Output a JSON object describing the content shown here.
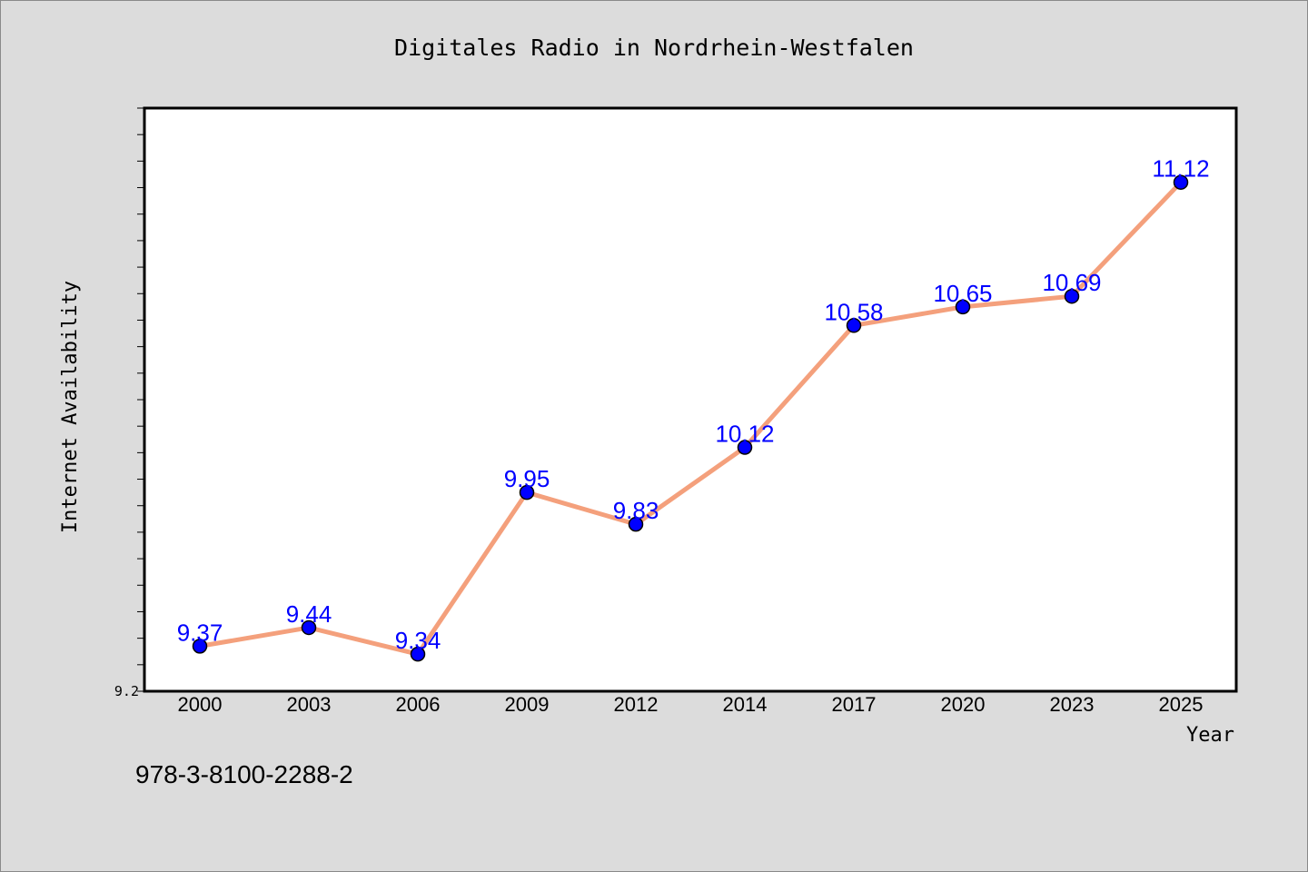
{
  "chart_data": {
    "type": "line",
    "title": "Digitales Radio in Nordrhein-Westfalen",
    "xlabel": "Year",
    "ylabel": "Internet Availability",
    "categories": [
      "2000",
      "2003",
      "2006",
      "2009",
      "2012",
      "2014",
      "2017",
      "2020",
      "2023",
      "2025"
    ],
    "series": [
      {
        "values": [
          9.37,
          9.44,
          9.34,
          9.95,
          9.83,
          10.12,
          10.58,
          10.65,
          10.69,
          11.12
        ]
      }
    ],
    "data_labels": [
      "9.37",
      "9.44",
      "9.34",
      "9.95",
      "9.83",
      "10.12",
      "10.58",
      "10.65",
      "10.69",
      "11.12"
    ],
    "ylim": [
      9.2,
      11.4
    ],
    "y_tick_label": "9.2",
    "grid": false,
    "line_color": "#f4a07c",
    "marker_color": "#0000ff",
    "label_color": "#0000ff"
  },
  "footer": {
    "isbn": "978-3-8100-2288-2"
  }
}
